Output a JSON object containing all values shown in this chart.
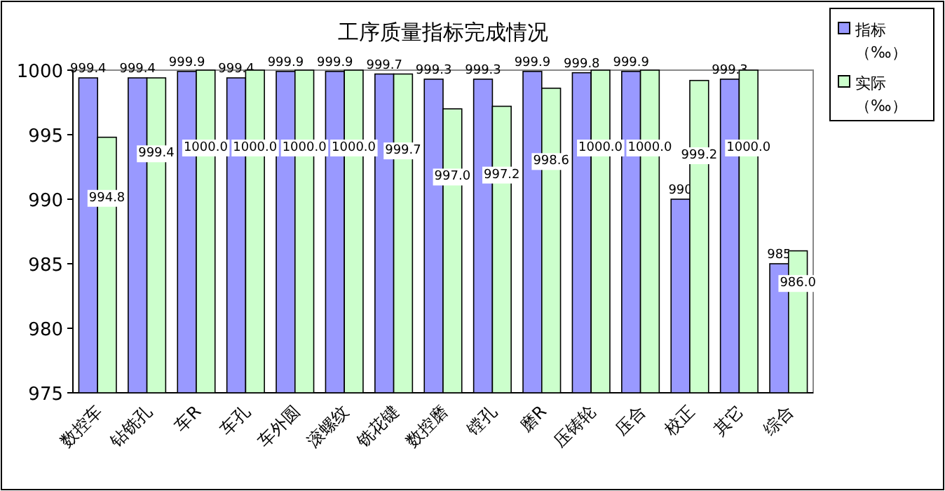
{
  "chart_data": {
    "type": "bar",
    "title": "工序质量指标完成情况",
    "categories": [
      "数控车",
      "钻铣孔",
      "车R",
      "车孔",
      "车外圆",
      "滚螺纹",
      "铣花键",
      "数控磨",
      "镗孔",
      "磨R",
      "压铸轮",
      "压合",
      "校正",
      "其它",
      "综合"
    ],
    "series": [
      {
        "name": "指标（‰）",
        "color": "#9999ff",
        "values": [
          999.4,
          999.4,
          999.9,
          999.4,
          999.9,
          999.9,
          999.7,
          999.3,
          999.3,
          999.9,
          999.8,
          999.9,
          990,
          999.3,
          985
        ],
        "value_labels": [
          "999.4",
          "999.4",
          "999.9",
          "999.4",
          "999.9",
          "999.9",
          "999.7",
          "999.3",
          "999.3",
          "999.9",
          "999.8",
          "999.9",
          "990",
          "999.3",
          "985"
        ]
      },
      {
        "name": "实际（‰）",
        "color": "#ccffcc",
        "values": [
          994.8,
          999.4,
          1000.0,
          1000.0,
          1000.0,
          1000.0,
          999.7,
          997.0,
          997.2,
          998.6,
          1000.0,
          1000.0,
          999.2,
          1000.0,
          986.0
        ],
        "value_labels": [
          "994.8",
          "999.4",
          "1000.0",
          "1000.0",
          "1000.0",
          "1000.0",
          "999.7",
          "997.0",
          "997.2",
          "998.6",
          "1000.0",
          "1000.0",
          "999.2",
          "1000.0",
          "986.0"
        ]
      }
    ],
    "ylim": [
      975,
      1000
    ],
    "yticks": [
      975,
      980,
      985,
      990,
      995,
      1000
    ],
    "grid": false,
    "legend": "top right"
  }
}
